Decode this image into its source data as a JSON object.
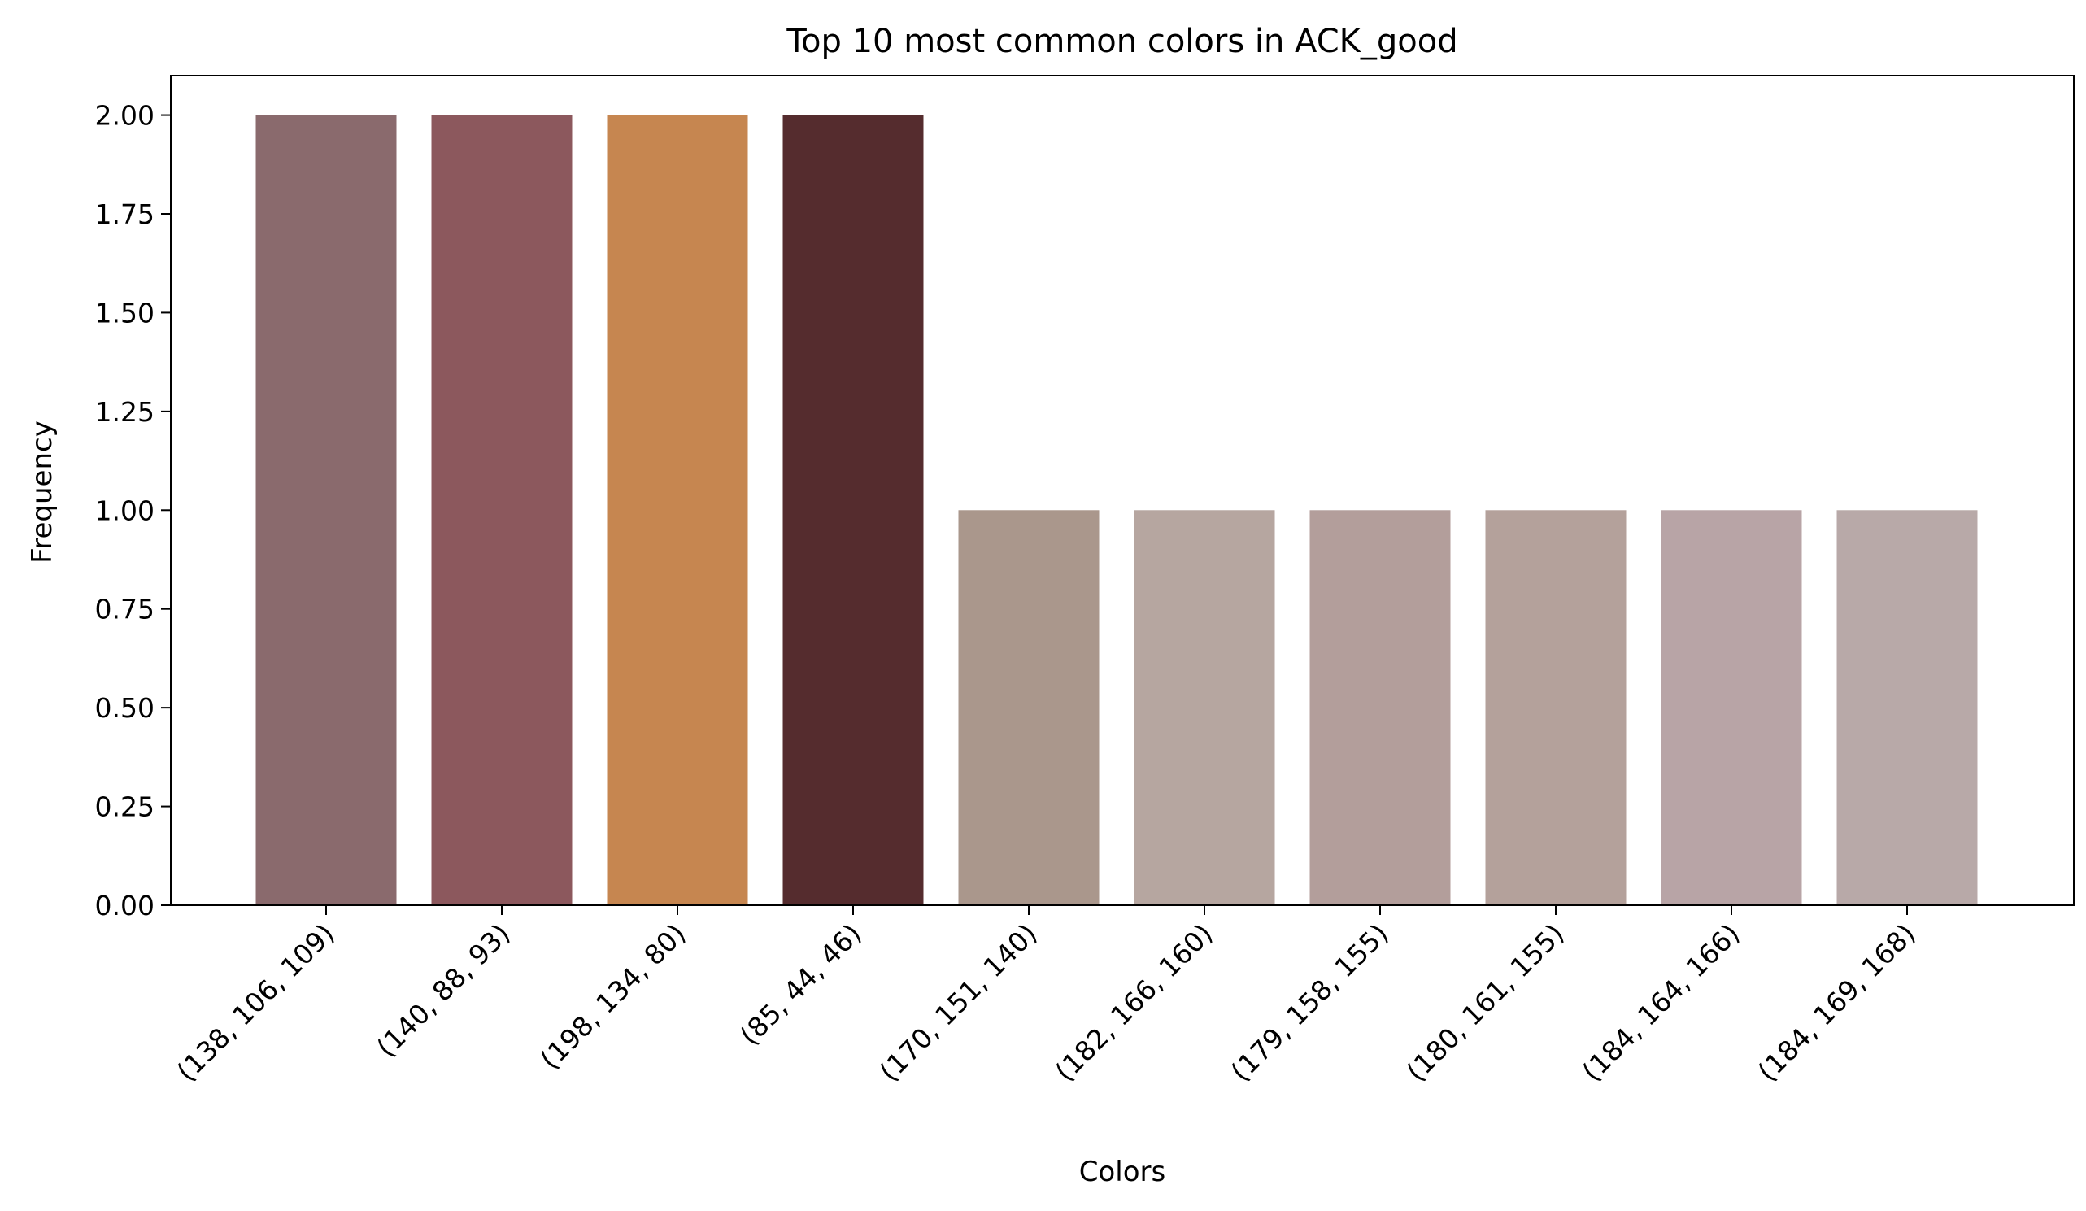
{
  "chart_data": {
    "type": "bar",
    "title": "Top 10 most common colors in ACK_good",
    "xlabel": "Colors",
    "ylabel": "Frequency",
    "categories": [
      "(138, 106, 109)",
      "(140, 88, 93)",
      "(198, 134, 80)",
      "(85, 44, 46)",
      "(170, 151, 140)",
      "(182, 166, 160)",
      "(179, 158, 155)",
      "(180, 161, 155)",
      "(184, 164, 166)",
      "(184, 169, 168)"
    ],
    "values": [
      2,
      2,
      2,
      2,
      1,
      1,
      1,
      1,
      1,
      1
    ],
    "bar_colors": [
      "#8a6a6d",
      "#8c585d",
      "#c68650",
      "#552c2e",
      "#aa978c",
      "#b6a6a0",
      "#b39e9b",
      "#b4a19b",
      "#b8a4a6",
      "#b8a9a8"
    ],
    "ylim": [
      0,
      2.1
    ],
    "yticks": [
      0,
      0.25,
      0.5,
      0.75,
      1.0,
      1.25,
      1.5,
      1.75,
      2.0
    ],
    "ytick_labels": [
      "0.00",
      "0.25",
      "0.50",
      "0.75",
      "1.00",
      "1.25",
      "1.50",
      "1.75",
      "2.00"
    ],
    "grid": false,
    "legend": "none"
  }
}
